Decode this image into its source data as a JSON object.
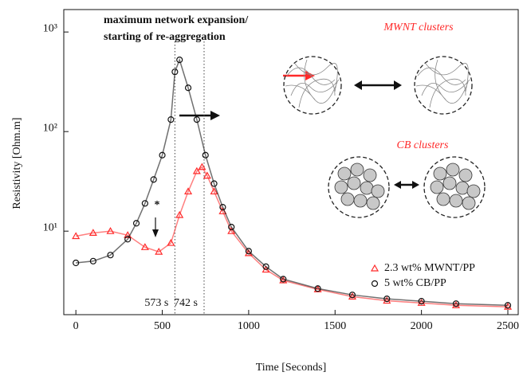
{
  "chart_data": {
    "type": "scatter",
    "xlabel": "Time [Seconds]",
    "ylabel": "Resistivity [Ohm.m]",
    "xlim": [
      -70,
      2560
    ],
    "ylim": [
      1.45,
      1680
    ],
    "log_y": true,
    "xticks": [
      0,
      500,
      1000,
      1500,
      2000,
      2500
    ],
    "yticks": [
      {
        "value": 10,
        "label": "10¹"
      },
      {
        "value": 100,
        "label": "10²"
      },
      {
        "value": 1000,
        "label": "10³"
      }
    ],
    "legend": "lower right",
    "series": [
      {
        "name": "2.3 wt% MWNT/PP",
        "color": "#ff2a2a",
        "marker": "triangle",
        "x": [
          0,
          100,
          200,
          300,
          400,
          480,
          550,
          600,
          650,
          700,
          730,
          760,
          800,
          850,
          900,
          1000,
          1100,
          1200,
          1400,
          1600,
          1800,
          2000,
          2200,
          2500
        ],
        "values": [
          8.9,
          9.6,
          10,
          9.1,
          6.9,
          6.2,
          7.6,
          14.5,
          25,
          40,
          44,
          36,
          25,
          15.8,
          10,
          6,
          4.1,
          3.2,
          2.6,
          2.2,
          2.0,
          1.9,
          1.8,
          1.74
        ]
      },
      {
        "name": "5 wt% CB/PP",
        "color": "#111111",
        "marker": "circle",
        "x": [
          0,
          100,
          200,
          300,
          350,
          400,
          450,
          500,
          550,
          573,
          600,
          650,
          700,
          750,
          800,
          850,
          900,
          1000,
          1100,
          1200,
          1400,
          1600,
          1800,
          2000,
          2200,
          2500
        ],
        "values": [
          4.8,
          5.0,
          5.75,
          8.3,
          12,
          19,
          33,
          58,
          132,
          398,
          525,
          275,
          132,
          58,
          30,
          17.4,
          11,
          6.3,
          4.4,
          3.3,
          2.65,
          2.29,
          2.09,
          1.98,
          1.87,
          1.8
        ]
      }
    ],
    "vlines": [
      {
        "value": 573,
        "label": "573 s"
      },
      {
        "value": 742,
        "label": "742 s"
      }
    ],
    "annotations": [
      "maximum network expansion/",
      "starting of re-aggregation",
      "MWNT clusters",
      "CB clusters",
      "*"
    ]
  }
}
